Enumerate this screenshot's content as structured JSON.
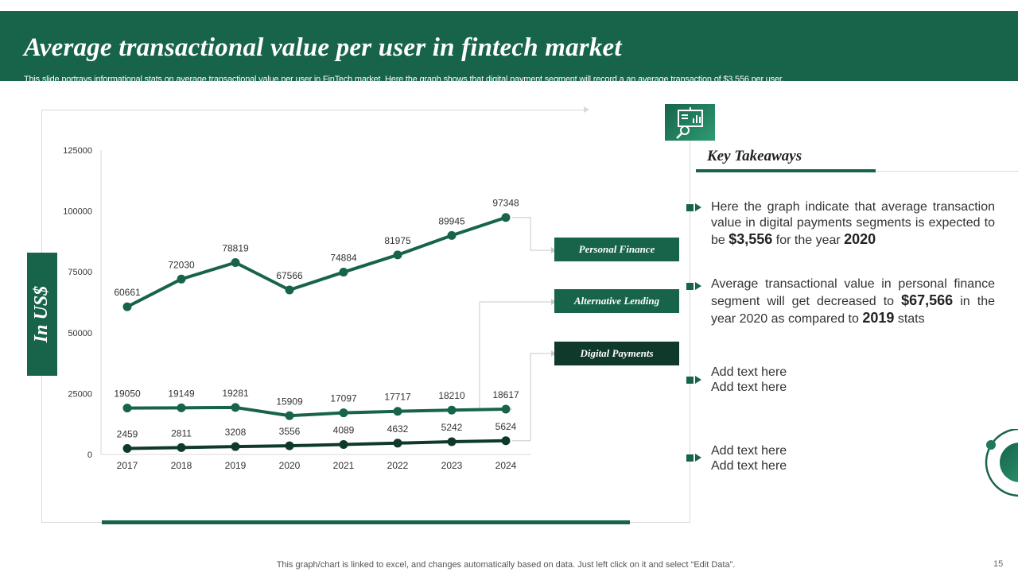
{
  "header": {
    "title": "Average transactional value per user in fintech market",
    "subtitle": "This slide portrays informational stats on average transactional value per user in FinTech market. Here the graph shows that digital payment segment will record a an average transaction of $3,556 per user."
  },
  "y_unit_label": "In US$",
  "colors": {
    "brand": "#17644a",
    "personal_finance": "#17644a",
    "alternative_lending": "#17644a",
    "digital_payments": "#0f3a2b",
    "legend_dark": "#0f3a2b"
  },
  "chart_data": {
    "type": "line",
    "title": "",
    "xlabel": "",
    "ylabel": "In US$",
    "x": [
      "2017",
      "2018",
      "2019",
      "2020",
      "2021",
      "2022",
      "2023",
      "2024"
    ],
    "ylim": [
      0,
      125000
    ],
    "yticks": [
      "0",
      "25000",
      "50000",
      "75000",
      "100000",
      "125000"
    ],
    "series": [
      {
        "name": "Personal Finance",
        "values": [
          60661,
          72030,
          78819,
          67566,
          74884,
          81975,
          89945,
          97348
        ],
        "labels": [
          "60661",
          "72030",
          "78819",
          "67566",
          "74884",
          "81975",
          "89945",
          "97348"
        ]
      },
      {
        "name": "Alternative Lending",
        "values": [
          19050,
          19149,
          19281,
          15909,
          17097,
          17717,
          18210,
          18617
        ],
        "labels": [
          "19050",
          "19149",
          "19281",
          "15909",
          "17097",
          "17717",
          "18210",
          "18617"
        ]
      },
      {
        "name": "Digital Payments",
        "values": [
          2459,
          2811,
          3208,
          3556,
          4089,
          4632,
          5242,
          5624
        ],
        "labels": [
          "2459",
          "2811",
          "3208",
          "3556",
          "4089",
          "4632",
          "5242",
          "5624"
        ]
      }
    ],
    "grid": false
  },
  "legend": {
    "personal_finance": "Personal Finance",
    "alternative_lending": "Alternative Lending",
    "digital_payments": "Digital Payments"
  },
  "key_takeaways": {
    "title": "Key Takeaways",
    "icon": "presentation-chart-icon",
    "item1": {
      "pre": "Here the graph indicate that average transaction value in digital payments segments is expected to be ",
      "value": "$3,556",
      "mid": " for the year ",
      "year": "2020"
    },
    "item2": {
      "pre": "Average transactional value in personal finance segment will get decreased to ",
      "value": "$67,566",
      "mid": " in the year 2020 as compared to ",
      "year": "2019",
      "post": " stats"
    },
    "item3": [
      "Add text here",
      "Add text here"
    ],
    "item4": [
      "Add text here",
      "Add text here"
    ]
  },
  "footer": {
    "note": "This graph/chart is linked to excel,  and changes automatically based on data. Just left click on it and select “Edit Data”.",
    "page": "15"
  }
}
